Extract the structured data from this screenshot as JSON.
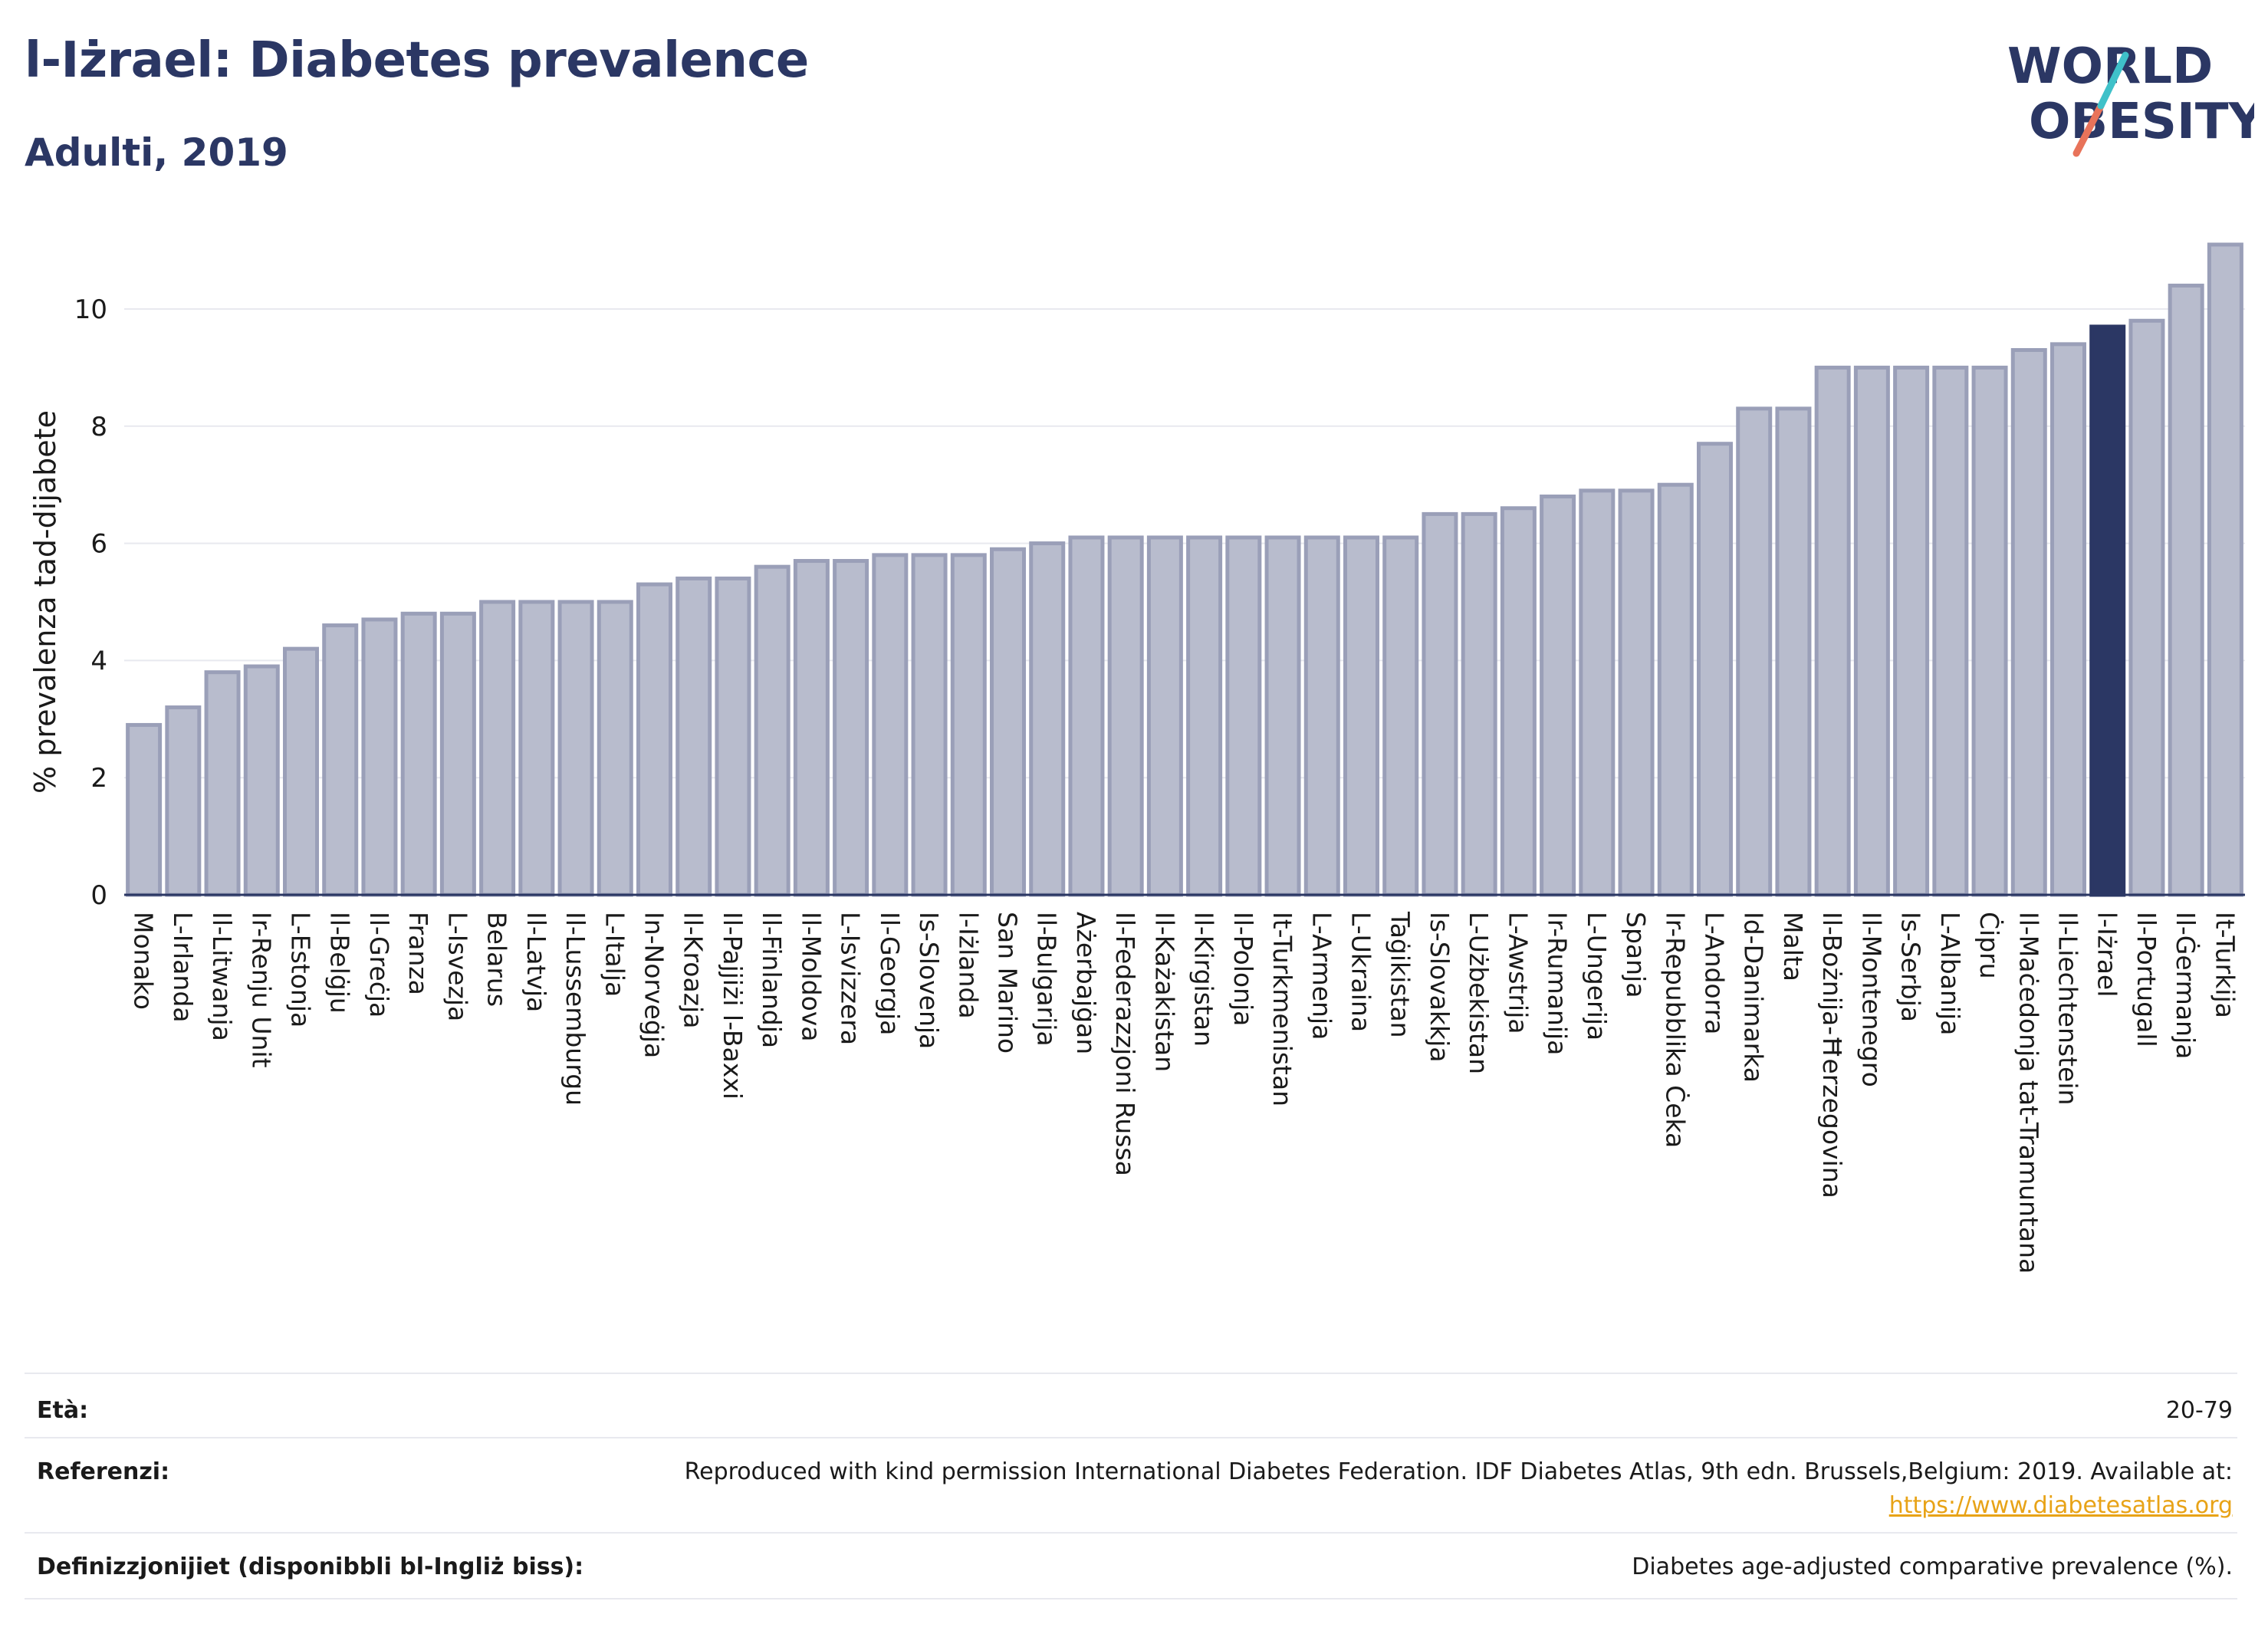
{
  "title": "l-Iżrael: Diabetes prevalence",
  "subtitle": "Adulti, 2019",
  "logo": {
    "line1": "WORLD",
    "line2": "OBESITY",
    "slash_colors": [
      "#3fc1c9",
      "#e8735a"
    ],
    "text_color": "#2b3764"
  },
  "colors": {
    "bar": "#b8bccd",
    "bar_stroke": "#9a9fb8",
    "highlight": "#2b3764",
    "grid": "#e8e9ef"
  },
  "chart_data": {
    "type": "bar",
    "ylabel": "% prevalenza tad-dijabete",
    "ylim": [
      0,
      11.2
    ],
    "yticks": [
      0,
      2,
      4,
      6,
      8,
      10
    ],
    "grid": true,
    "highlight_category": "l-Iżrael",
    "categories": [
      "Monako",
      "L-Irlanda",
      "Il-Litwanja",
      "Ir-Renju Unit",
      "L-Estonja",
      "Il-Belġju",
      "Il-Greċja",
      "Franza",
      "L-Isvezja",
      "Belarus",
      "Il-Latvja",
      "Il-Lussemburgu",
      "L-Italja",
      "In-Norveġja",
      "Il-Kroazja",
      "Il-Pajjiżi l-Baxxi",
      "Il-Finlandja",
      "Il-Moldova",
      "L-Isvizzera",
      "Il-Georgja",
      "Is-Slovenja",
      "l-Iżlanda",
      "San Marino",
      "Il-Bulgarija",
      "Ażerbajġan",
      "Il-Federazzjoni Russa",
      "Il-Każakistan",
      "Il-Kirgistan",
      "Il-Polonja",
      "It-Turkmenistan",
      "L-Armenja",
      "L-Ukraina",
      "Taġikistan",
      "Is-Slovakkja",
      "L-Użbekistan",
      "L-Awstrija",
      "Ir-Rumanija",
      "L-Ungerija",
      "Spanja",
      "Ir-Repubblika Ċeka",
      "L-Andorra",
      "Id-Danimarka",
      "Malta",
      "Il-Bożnija-Ħerzegovina",
      "Il-Montenegro",
      "Is-Serbja",
      "L-Albanija",
      "Ċipru",
      "Il-Maċedonja tat-Tramuntana",
      "Il-Liechtenstein",
      "l-Iżrael",
      "Il-Portugall",
      "Il-Ġermanja",
      "It-Turkija"
    ],
    "values": [
      2.9,
      3.2,
      3.8,
      3.9,
      4.2,
      4.6,
      4.7,
      4.8,
      4.8,
      5.0,
      5.0,
      5.0,
      5.0,
      5.3,
      5.4,
      5.4,
      5.6,
      5.7,
      5.7,
      5.8,
      5.8,
      5.8,
      5.9,
      6.0,
      6.1,
      6.1,
      6.1,
      6.1,
      6.1,
      6.1,
      6.1,
      6.1,
      6.1,
      6.5,
      6.5,
      6.6,
      6.8,
      6.9,
      6.9,
      7.0,
      7.7,
      8.3,
      8.3,
      9.0,
      9.0,
      9.0,
      9.0,
      9.0,
      9.3,
      9.4,
      9.7,
      9.8,
      10.4,
      11.1
    ]
  },
  "footer": {
    "age_label": "Età:",
    "age_value": "20-79",
    "ref_label": "Referenzi:",
    "ref_text": "Reproduced with kind permission International Diabetes Federation. IDF Diabetes Atlas, 9th edn. Brussels,Belgium: 2019. Available at:",
    "ref_link": "https://www.diabetesatlas.org",
    "def_label": "Definizzjonijiet (disponibbli bl-Ingliż biss):",
    "def_text": "Diabetes age-adjusted comparative prevalence (%)."
  }
}
